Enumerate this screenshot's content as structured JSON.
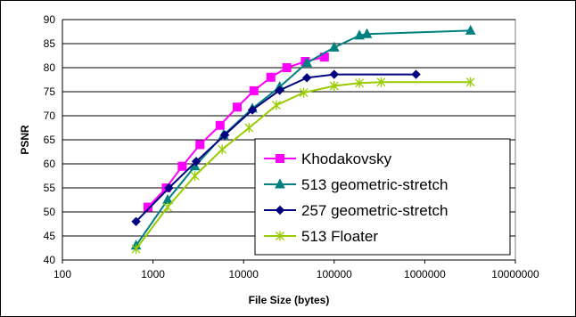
{
  "chart_data": {
    "type": "line",
    "xlabel": "File Size (bytes)",
    "ylabel": "PSNR",
    "x_scale": "log",
    "xlim": [
      100,
      10000000
    ],
    "ylim": [
      40,
      90
    ],
    "x_ticks": [
      "100",
      "1000",
      "10000",
      "100000",
      "1000000",
      "10000000"
    ],
    "x_tick_values": [
      100,
      1000,
      10000,
      100000,
      1000000,
      10000000
    ],
    "y_ticks": [
      40,
      45,
      50,
      55,
      60,
      65,
      70,
      75,
      80,
      85,
      90
    ],
    "grid": "horizontal",
    "legend_position": "bottom-right",
    "series": [
      {
        "name": "Khodakovsky",
        "color": "#ff00ff",
        "marker": "square",
        "x": [
          880,
          1400,
          2100,
          3300,
          5500,
          8500,
          13000,
          20000,
          30000,
          48000,
          78000
        ],
        "y": [
          51,
          55,
          59.5,
          64,
          68,
          71.8,
          75.2,
          78,
          80,
          81.3,
          82.2
        ]
      },
      {
        "name": "513 geometric-stretch",
        "color": "#008080",
        "marker": "triangle",
        "x": [
          650,
          1450,
          2900,
          6000,
          12500,
          25000,
          50000,
          100000,
          190000,
          230000,
          3200000
        ],
        "y": [
          43,
          52.5,
          59.5,
          66,
          71.5,
          76,
          81,
          84.2,
          86.7,
          87,
          87.7
        ]
      },
      {
        "name": "257 geometric-stretch",
        "color": "#000080",
        "marker": "diamond",
        "x": [
          650,
          1500,
          3000,
          6200,
          12500,
          25000,
          50000,
          100000,
          800000
        ],
        "y": [
          48,
          55,
          60.5,
          66,
          71.2,
          75.3,
          77.9,
          78.6,
          78.6
        ]
      },
      {
        "name": "513 Floater",
        "color": "#99cc00",
        "marker": "asterisk",
        "x": [
          650,
          1450,
          2900,
          5800,
          11500,
          23000,
          46000,
          100000,
          190000,
          330000,
          3200000
        ],
        "y": [
          42.3,
          51,
          57.5,
          63,
          67.5,
          72.2,
          74.8,
          76.2,
          76.8,
          77,
          77
        ]
      }
    ]
  }
}
